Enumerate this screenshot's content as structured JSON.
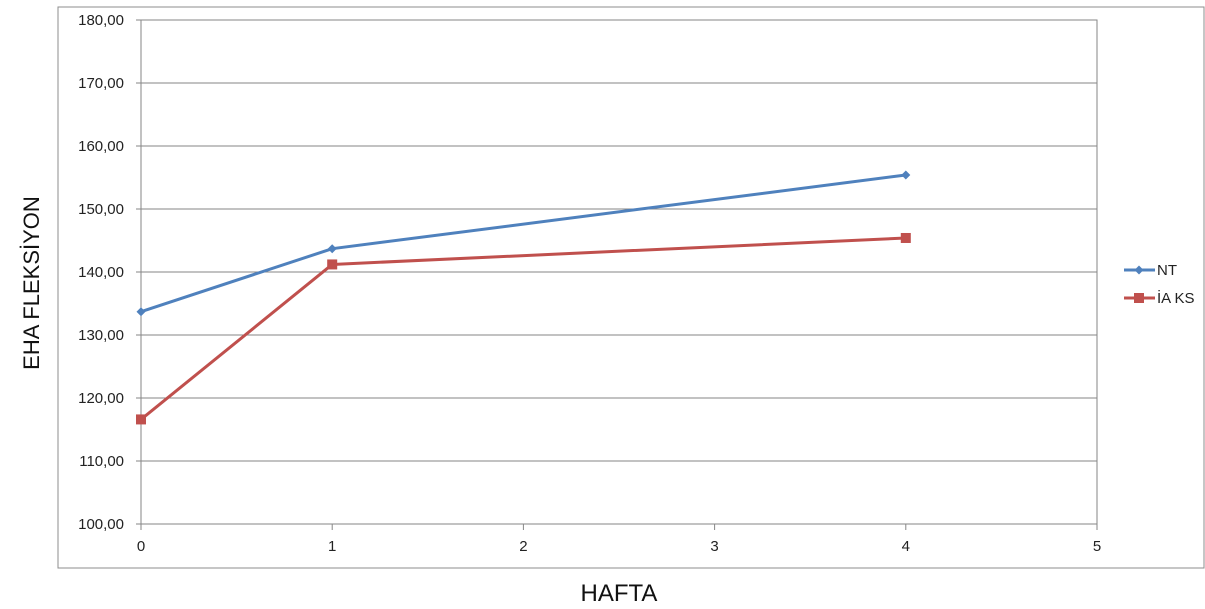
{
  "chart_data": {
    "type": "line",
    "xlabel": "HAFTA",
    "ylabel": "EHA FLEKSİYON",
    "xlim": [
      0,
      5
    ],
    "ylim": [
      100,
      180
    ],
    "x_ticks": [
      "0",
      "1",
      "2",
      "3",
      "4",
      "5"
    ],
    "y_ticks": [
      "100,00",
      "110,00",
      "120,00",
      "130,00",
      "140,00",
      "150,00",
      "160,00",
      "170,00",
      "180,00"
    ],
    "grid": "horizontal",
    "legend_position": "right",
    "series": [
      {
        "name": "NT",
        "color": "#4F81BD",
        "marker": "diamond",
        "x": [
          0,
          1,
          4
        ],
        "y": [
          133.7,
          143.7,
          155.4
        ]
      },
      {
        "name": "İA KS",
        "color": "#C0504D",
        "marker": "square",
        "x": [
          0,
          1,
          4
        ],
        "y": [
          116.6,
          141.2,
          145.4
        ]
      }
    ]
  }
}
